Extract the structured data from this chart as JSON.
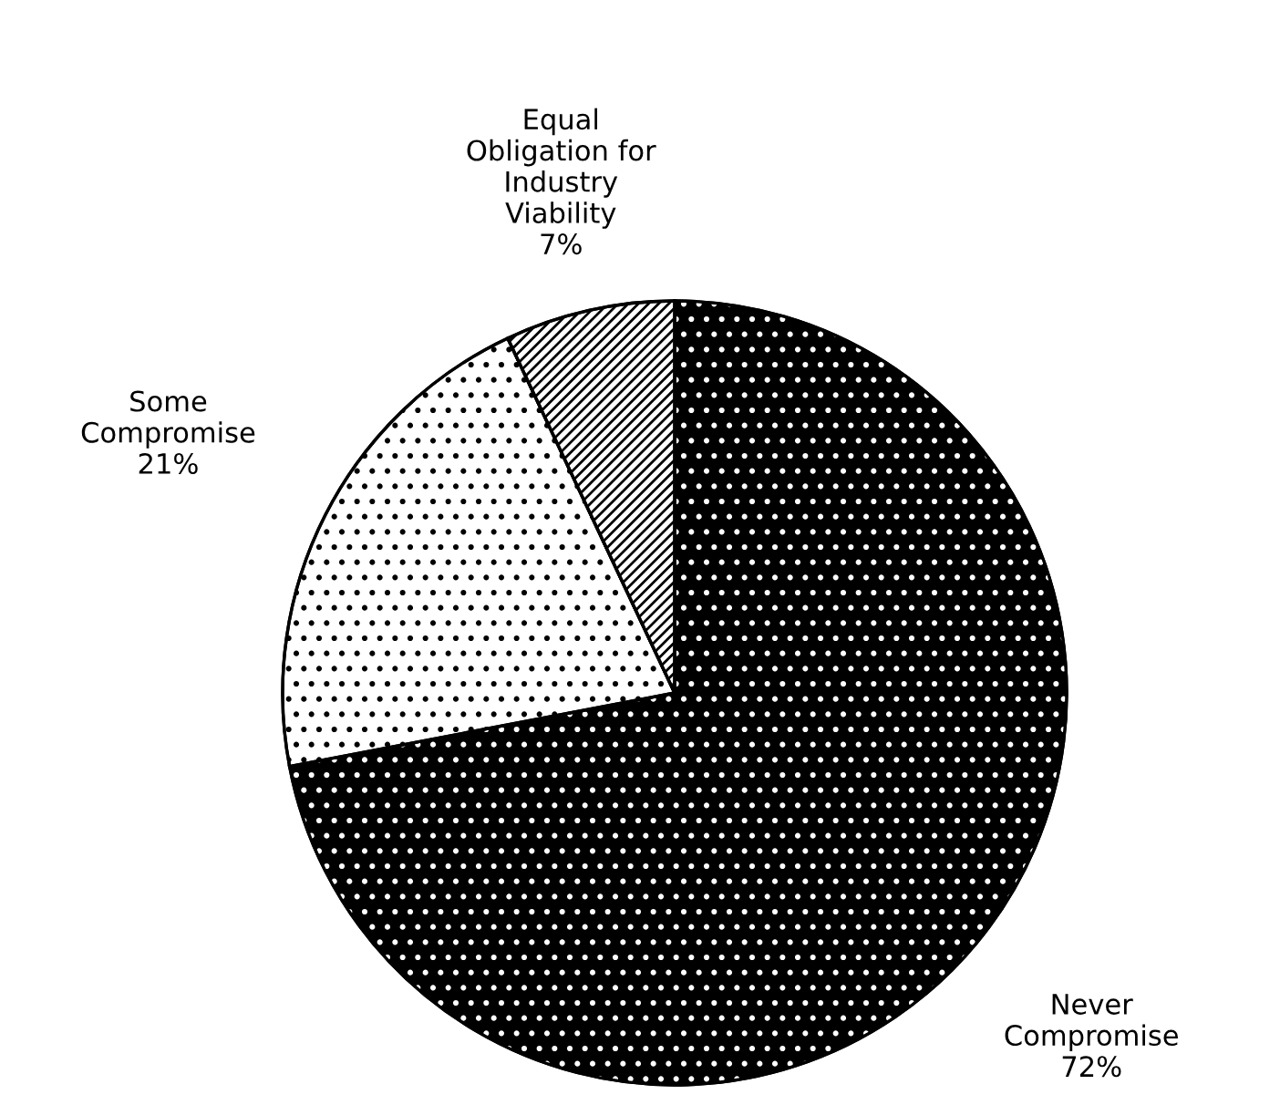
{
  "chart_data": {
    "type": "pie",
    "categories": [
      "Never\nCompromise",
      "Some\nCompromise",
      "Equal\nObligation for\nIndustry\nViability"
    ],
    "values": [
      72,
      21,
      7
    ],
    "value_labels": [
      "72%",
      "21%",
      "7%"
    ],
    "colors": [
      "#000000",
      "#ffffff",
      "#ffffff"
    ]
  }
}
